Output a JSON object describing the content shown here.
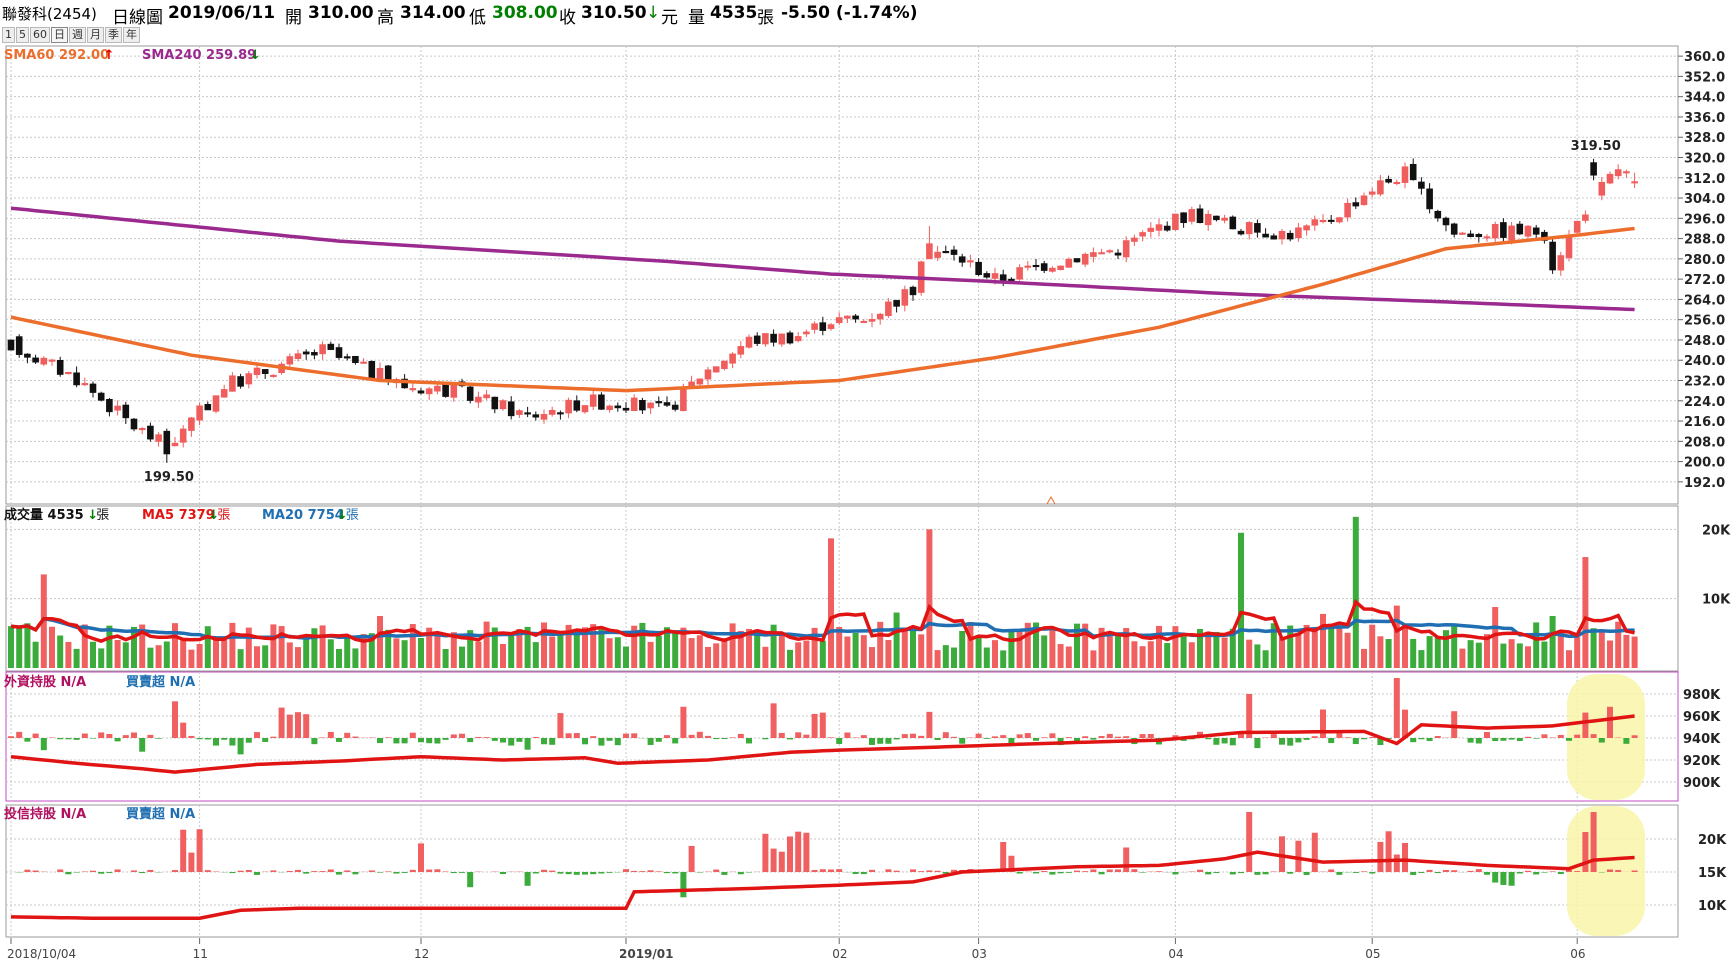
{
  "header": {
    "stock": "聯發科(2454)",
    "period_label": "日線圖",
    "date": "2019/06/11",
    "open_label": "開",
    "open": "310.00",
    "high_label": "高",
    "high": "314.00",
    "low_label": "低",
    "low": "308.00",
    "close_label": "收",
    "close": "310.50",
    "currency": "元",
    "vol_label": "量",
    "volume": "4535",
    "unit": "張",
    "change": "-5.50 (-1.74%)"
  },
  "tabs": [
    "1",
    "5",
    "60",
    "日",
    "週",
    "月",
    "季",
    "年"
  ],
  "active_tab": "日",
  "colors": {
    "up": "#f05d5d",
    "down": "#111111",
    "sma60": "#ec6d2c",
    "sma240": "#9b2a8f",
    "vol_green": "#3bab3b",
    "vol_red": "#f06060",
    "ma5": "#e11414",
    "ma20": "#1f6fb2",
    "arrow_up": "#e00000",
    "arrow_down": "#008000",
    "grid": "#c8c8c8",
    "highlight": "#f9f4a8"
  },
  "chart_data": [
    {
      "type": "candlestick",
      "title": "日線圖",
      "legend": [
        {
          "name": "SMA60",
          "value": "292.00",
          "dir": "up"
        },
        {
          "name": "SMA240",
          "value": "259.89",
          "dir": "down"
        }
      ],
      "ylim": [
        188,
        364
      ],
      "yticks": [
        "360.0",
        "352.0",
        "344.0",
        "336.0",
        "328.0",
        "320.0",
        "312.0",
        "304.0",
        "296.0",
        "288.0",
        "280.0",
        "272.0",
        "264.0",
        "256.0",
        "248.0",
        "240.0",
        "232.0",
        "224.0",
        "216.0",
        "208.0",
        "200.0",
        "192.0"
      ],
      "x_labels": [
        "2018/10/04",
        "11",
        "12",
        "2019/01",
        "02",
        "03",
        "04",
        "05",
        "06"
      ],
      "x_label_index": [
        0,
        23,
        50,
        75,
        101,
        118,
        142,
        166,
        191
      ],
      "annotations": [
        {
          "text": "199.50",
          "index": 19
        },
        {
          "text": "319.50",
          "index": 193
        }
      ],
      "sample_candles": [
        {
          "i": 0,
          "o": 248,
          "h": 248,
          "l": 244,
          "c": 244
        },
        {
          "i": 19,
          "o": 212,
          "h": 213,
          "l": 199.5,
          "c": 203
        },
        {
          "i": 112,
          "o": 280,
          "h": 293,
          "l": 280,
          "c": 286
        },
        {
          "i": 193,
          "o": 318,
          "h": 319.5,
          "l": 311,
          "c": 313
        },
        {
          "i": 198,
          "o": 310,
          "h": 314,
          "l": 308,
          "c": 310.5
        }
      ],
      "sma60_points": [
        [
          0,
          257
        ],
        [
          22,
          242
        ],
        [
          45,
          232
        ],
        [
          75,
          228
        ],
        [
          101,
          232
        ],
        [
          120,
          241
        ],
        [
          140,
          253
        ],
        [
          160,
          270
        ],
        [
          175,
          284
        ],
        [
          190,
          289
        ],
        [
          198,
          292
        ]
      ],
      "sma240_points": [
        [
          0,
          300
        ],
        [
          40,
          287
        ],
        [
          80,
          279
        ],
        [
          100,
          274
        ],
        [
          120,
          271
        ],
        [
          150,
          266
        ],
        [
          175,
          263
        ],
        [
          198,
          260
        ]
      ]
    },
    {
      "type": "bar",
      "title": "成交量",
      "legend": [
        {
          "name": "成交量",
          "value": "4535",
          "unit": "張",
          "dir": "down"
        },
        {
          "name": "MA5",
          "value": "7379",
          "unit": "張",
          "dir": "down"
        },
        {
          "name": "MA20",
          "value": "7754",
          "unit": "張",
          "dir": "down"
        }
      ],
      "ylim": [
        0,
        22500
      ],
      "yticks": [
        "20K",
        "10K"
      ],
      "peaks": [
        {
          "i": 100,
          "value": 18700
        },
        {
          "i": 112,
          "value": 20000
        },
        {
          "i": 150,
          "value": 19500
        },
        {
          "i": 164,
          "value": 21800
        },
        {
          "i": 192,
          "value": 16000
        },
        {
          "i": 198,
          "value": 4535
        }
      ]
    },
    {
      "type": "bar+line",
      "title": "外資持股",
      "legend": [
        {
          "name": "外資持股",
          "value": "N/A"
        },
        {
          "name": "買賣超",
          "value": "N/A"
        }
      ],
      "ylim": [
        880,
        1000
      ],
      "yticks": [
        "980K",
        "960K",
        "940K",
        "920K",
        "900K"
      ]
    },
    {
      "type": "bar+line",
      "title": "投信持股",
      "legend": [
        {
          "name": "投信持股",
          "value": "N/A"
        },
        {
          "name": "買賣超",
          "value": "N/A"
        }
      ],
      "ylim": [
        5,
        25
      ],
      "yticks": [
        "20K",
        "15K",
        "10K"
      ]
    }
  ]
}
